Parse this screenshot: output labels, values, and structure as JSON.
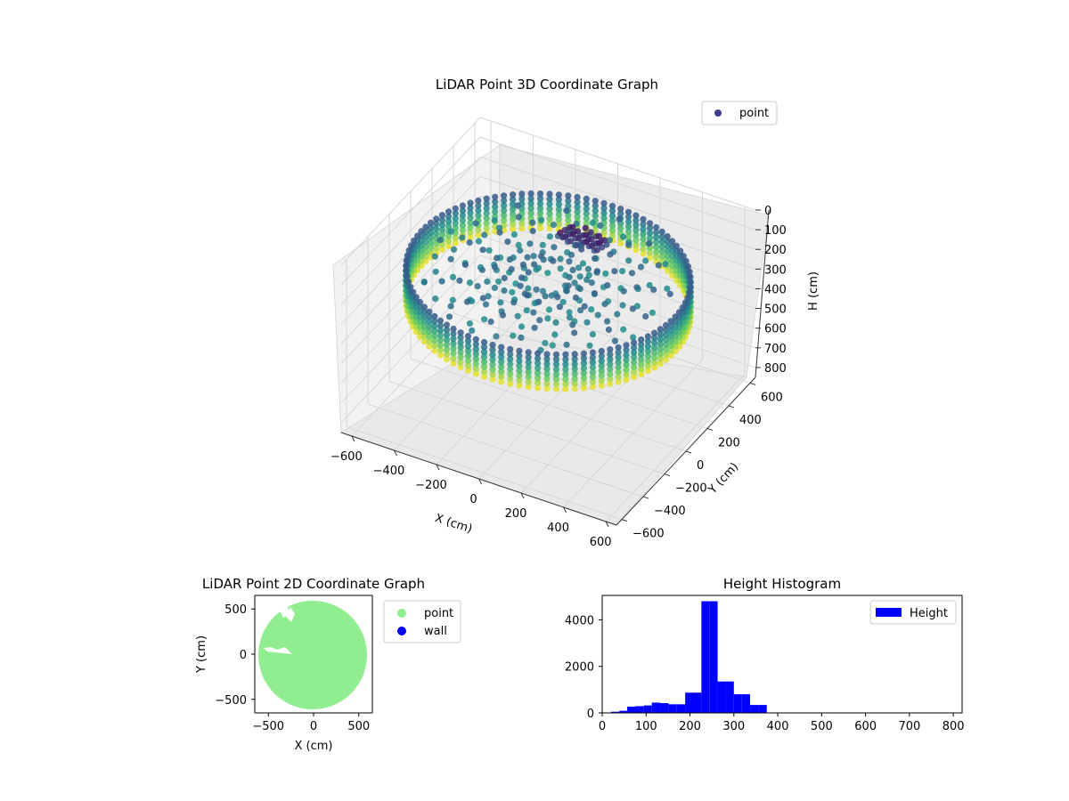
{
  "colors": {
    "background": "#ffffff",
    "pane_fill": "#f2f2f2",
    "grid": "#d6d6d6",
    "point_legend": "#3b3f8c",
    "scatter_point": "#90ee90",
    "wall": "#0000ff",
    "histogram": "#0000ff",
    "viridis": [
      "#440154",
      "#3b528b",
      "#21918c",
      "#5ec962",
      "#fde725"
    ]
  },
  "chart_data": [
    {
      "type": "scatter",
      "projection": "3d",
      "title": "LiDAR Point 3D Coordinate Graph",
      "xlabel": "X (cm)",
      "ylabel": "Y (cm)",
      "zlabel": "H (cm)",
      "xticks": [
        "−600",
        "−400",
        "−200",
        "0",
        "200",
        "400",
        "600"
      ],
      "yticks": [
        "−600",
        "−400",
        "−200",
        "0",
        "200",
        "400",
        "600"
      ],
      "zticks": [
        "0",
        "100",
        "200",
        "300",
        "400",
        "500",
        "600",
        "700",
        "800"
      ],
      "xlim": [
        -650,
        650
      ],
      "ylim": [
        -650,
        650
      ],
      "zlim": [
        850,
        0
      ],
      "zaxis_inverted": true,
      "colormap": "viridis",
      "legend": {
        "placement": "top-right",
        "entries": [
          "point"
        ]
      },
      "grid": true,
      "description_of_series": "cylindrical wall of points, radius about 600 cm, heights about 180 to 370 cm"
    },
    {
      "type": "scatter",
      "title": "LiDAR Point 2D Coordinate Graph",
      "xlabel": "X (cm)",
      "ylabel": "Y (cm)",
      "xticks": [
        "−500",
        "0",
        "500"
      ],
      "yticks": [
        "−500",
        "0",
        "500"
      ],
      "xlim": [
        -650,
        650
      ],
      "ylim": [
        -650,
        650
      ],
      "legend": {
        "placement": "outside-right",
        "entries": [
          "point",
          "wall"
        ]
      },
      "grid": false,
      "series": [
        {
          "name": "point",
          "shape": "disc",
          "radius": 600
        },
        {
          "name": "wall",
          "points": []
        }
      ]
    },
    {
      "type": "bar",
      "subtype": "histogram",
      "title": "Height Histogram",
      "xticks": [
        "0",
        "100",
        "200",
        "300",
        "400",
        "500",
        "600",
        "700",
        "800"
      ],
      "yticks": [
        "0",
        "2000",
        "4000"
      ],
      "xlim": [
        0,
        820
      ],
      "ylim": [
        0,
        5050
      ],
      "grid": false,
      "legend": {
        "placement": "top-right",
        "entries": [
          "Height"
        ]
      },
      "bins": [
        {
          "x0": 0,
          "x1": 20,
          "value": 0
        },
        {
          "x0": 20,
          "x1": 39,
          "value": 50
        },
        {
          "x0": 39,
          "x1": 57,
          "value": 90
        },
        {
          "x0": 57,
          "x1": 76,
          "value": 270
        },
        {
          "x0": 76,
          "x1": 95,
          "value": 290
        },
        {
          "x0": 95,
          "x1": 113,
          "value": 320
        },
        {
          "x0": 113,
          "x1": 132,
          "value": 440
        },
        {
          "x0": 132,
          "x1": 151,
          "value": 420
        },
        {
          "x0": 151,
          "x1": 170,
          "value": 370
        },
        {
          "x0": 170,
          "x1": 189,
          "value": 370
        },
        {
          "x0": 189,
          "x1": 208,
          "value": 870
        },
        {
          "x0": 208,
          "x1": 226,
          "value": 870
        },
        {
          "x0": 226,
          "x1": 245,
          "value": 4800
        },
        {
          "x0": 245,
          "x1": 263,
          "value": 4800
        },
        {
          "x0": 263,
          "x1": 282,
          "value": 1350
        },
        {
          "x0": 282,
          "x1": 300,
          "value": 1350
        },
        {
          "x0": 300,
          "x1": 318,
          "value": 800
        },
        {
          "x0": 318,
          "x1": 337,
          "value": 800
        },
        {
          "x0": 337,
          "x1": 356,
          "value": 340
        },
        {
          "x0": 356,
          "x1": 375,
          "value": 340
        },
        {
          "x0": 375,
          "x1": 820,
          "value": 5
        }
      ]
    }
  ]
}
